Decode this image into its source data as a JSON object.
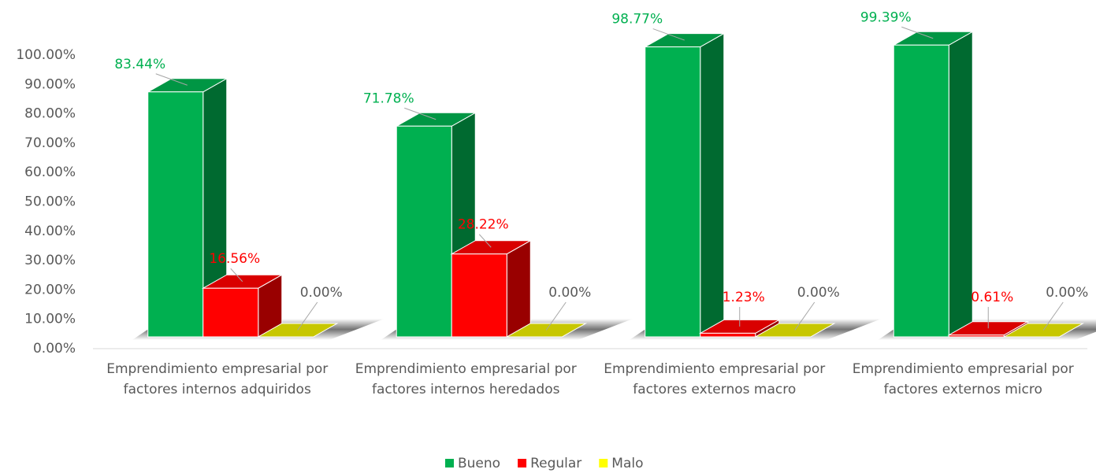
{
  "chart_data": {
    "type": "bar3d",
    "categories": [
      "Emprendimiento empresarial por factores internos adquiridos",
      "Emprendimiento empresarial por factores internos heredados",
      "Emprendimiento empresarial por factores externos macro",
      "Emprendimiento empresarial por factores externos micro"
    ],
    "series": [
      {
        "name": "Bueno",
        "color": "#00b050",
        "values": [
          83.44,
          71.78,
          98.77,
          99.39
        ],
        "value_labels": [
          "83.44%",
          "71.78%",
          "98.77%",
          "99.39%"
        ]
      },
      {
        "name": "Regular",
        "color": "#ff0000",
        "values": [
          16.56,
          28.22,
          1.23,
          0.61
        ],
        "value_labels": [
          "16.56%",
          "28.22%",
          "1.23%",
          "0.61%"
        ]
      },
      {
        "name": "Malo",
        "color": "#ffff00",
        "values": [
          0,
          0,
          0,
          0
        ],
        "value_labels": [
          "0.00%",
          "0.00%",
          "0.00%",
          "0.00%"
        ]
      }
    ],
    "ylim": [
      0,
      100
    ],
    "yticks": [
      {
        "value": 0,
        "label": "0.00%"
      },
      {
        "value": 10,
        "label": "10.00%"
      },
      {
        "value": 20,
        "label": "20.00%"
      },
      {
        "value": 30,
        "label": "30.00%"
      },
      {
        "value": 40,
        "label": "40.00%"
      },
      {
        "value": 50,
        "label": "50.00%"
      },
      {
        "value": 60,
        "label": "60.00%"
      },
      {
        "value": 70,
        "label": "70.00%"
      },
      {
        "value": 80,
        "label": "80.00%"
      },
      {
        "value": 90,
        "label": "90.00%"
      },
      {
        "value": 100,
        "label": "100.00%"
      }
    ],
    "legend": "bottom",
    "grid": false
  }
}
